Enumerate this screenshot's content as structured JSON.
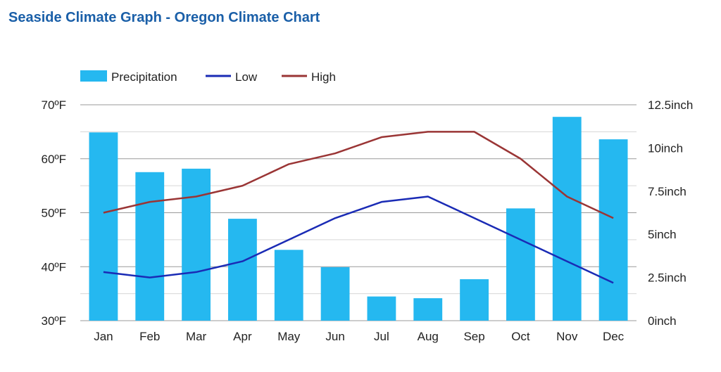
{
  "page": {
    "title": "Seaside Climate Graph - Oregon Climate Chart"
  },
  "chart_data": {
    "type": "bar",
    "categories": [
      "Jan",
      "Feb",
      "Mar",
      "Apr",
      "May",
      "Jun",
      "Jul",
      "Aug",
      "Sep",
      "Oct",
      "Nov",
      "Dec"
    ],
    "series": [
      {
        "name": "Precipitation",
        "type": "bar",
        "axis": "right",
        "color": "#25b8f0",
        "values": [
          10.9,
          8.6,
          8.8,
          5.9,
          4.1,
          3.1,
          1.4,
          1.3,
          2.4,
          6.5,
          11.8,
          10.5
        ]
      },
      {
        "name": "Low",
        "type": "line",
        "axis": "left",
        "color": "#1a2bb5",
        "values": [
          39,
          38,
          39,
          41,
          45,
          49,
          52,
          53,
          49,
          45,
          41,
          37
        ]
      },
      {
        "name": "High",
        "type": "line",
        "axis": "left",
        "color": "#9a3535",
        "values": [
          50,
          52,
          53,
          55,
          59,
          61,
          64,
          65,
          65,
          60,
          53,
          49
        ]
      }
    ],
    "y_left": {
      "min": 30,
      "max": 70,
      "ticks": [
        "30ºF",
        "40ºF",
        "50ºF",
        "60ºF",
        "70ºF"
      ]
    },
    "y_right": {
      "min": 0,
      "max": 12.5,
      "ticks": [
        "0inch",
        "2.5inch",
        "5inch",
        "7.5inch",
        "10inch",
        "12.5inch"
      ]
    },
    "legend_position": "top-left",
    "grid": true
  }
}
